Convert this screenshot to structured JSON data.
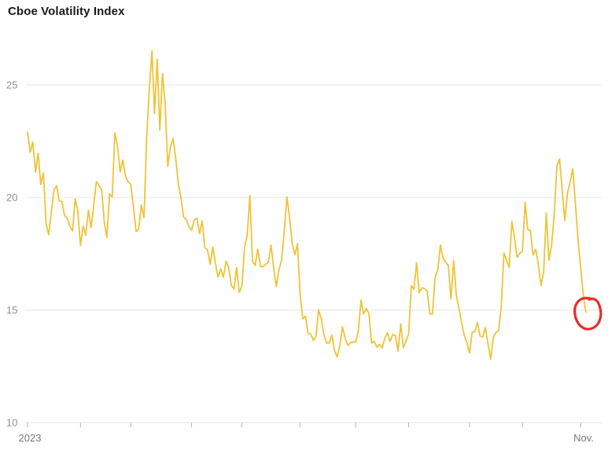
{
  "chart_data": {
    "type": "line",
    "title": "Cboe Volatility Index",
    "xlabel": "",
    "ylabel": "",
    "legend": "none",
    "grid": "horizontal",
    "y_ticks": [
      25,
      20,
      15,
      10
    ],
    "ylim": [
      10,
      27
    ],
    "x_axis": {
      "first_label": "2023",
      "last_label": "Nov.",
      "tick_unit": "month",
      "month_start_indices": [
        0,
        20,
        39,
        62,
        81,
        103,
        124,
        144,
        167,
        187,
        209
      ]
    },
    "series": [
      {
        "name": "Cboe Volatility Index",
        "color": "#EFC337",
        "values": [
          22.9,
          22.01,
          22.46,
          21.13,
          21.97,
          20.58,
          21.09,
          18.83,
          18.35,
          19.36,
          20.34,
          20.52,
          19.85,
          19.81,
          19.2,
          19.08,
          18.73,
          18.51,
          19.94,
          19.4,
          17.87,
          18.73,
          18.33,
          19.43,
          18.66,
          19.63,
          20.71,
          20.53,
          20.34,
          18.91,
          18.23,
          20.17,
          20.02,
          22.87,
          22.29,
          21.14,
          21.67,
          20.95,
          20.7,
          20.58,
          19.59,
          18.49,
          18.61,
          19.66,
          19.11,
          22.61,
          24.8,
          26.52,
          23.73,
          26.14,
          22.99,
          25.51,
          24.15,
          21.38,
          22.26,
          22.61,
          21.74,
          20.6,
          19.97,
          19.12,
          19.02,
          18.7,
          18.55,
          19.0,
          19.08,
          18.4,
          18.95,
          17.77,
          17.68,
          17.03,
          17.8,
          17.07,
          16.46,
          16.83,
          16.46,
          17.17,
          16.89,
          16.1,
          15.93,
          16.89,
          15.78,
          16.08,
          17.78,
          18.34,
          20.09,
          17.19,
          16.98,
          17.71,
          16.94,
          16.93,
          17.03,
          17.12,
          17.89,
          16.87,
          16.05,
          16.81,
          17.21,
          18.53,
          20.03,
          19.14,
          17.95,
          17.46,
          17.94,
          15.65,
          14.6,
          14.73,
          13.96,
          13.94,
          13.65,
          13.83,
          15.01,
          14.61,
          13.88,
          13.54,
          13.54,
          13.88,
          13.2,
          12.91,
          13.44,
          14.25,
          13.76,
          13.43,
          13.54,
          13.59,
          13.57,
          14.09,
          15.44,
          14.83,
          15.07,
          14.84,
          13.54,
          13.61,
          13.34,
          13.48,
          13.3,
          13.76,
          13.99,
          13.6,
          13.91,
          13.86,
          13.19,
          14.39,
          13.33,
          13.63,
          13.93,
          16.09,
          15.92,
          17.1,
          15.77,
          15.99,
          15.96,
          15.85,
          14.84,
          14.82,
          16.46,
          16.78,
          17.89,
          17.3,
          17.13,
          16.97,
          15.5,
          17.2,
          15.68,
          15.08,
          14.45,
          13.88,
          13.57,
          13.09,
          14.01,
          14.04,
          14.45,
          13.84,
          13.8,
          14.23,
          13.48,
          12.82,
          13.79,
          14.0,
          14.11,
          15.14,
          17.54,
          17.2,
          16.9,
          18.94,
          18.22,
          17.34,
          17.52,
          17.61,
          19.78,
          18.58,
          18.56,
          17.45,
          17.7,
          17.03,
          16.09,
          16.69,
          19.32,
          17.21,
          17.88,
          19.22,
          21.4,
          21.71,
          20.37,
          18.97,
          20.19,
          20.68,
          21.27,
          19.75,
          18.14,
          16.87,
          15.66,
          14.91
        ]
      }
    ],
    "annotation": {
      "type": "hand-drawn-circle",
      "color": "#E3241B",
      "target": "last-point",
      "highlighted_value": 14.91
    }
  },
  "styles": {
    "grid_color": "#E7E5E0",
    "tick_color": "#B5B2AC",
    "y_label_color": "#8F8F8F",
    "x_label_color": "#7A7A7A"
  }
}
